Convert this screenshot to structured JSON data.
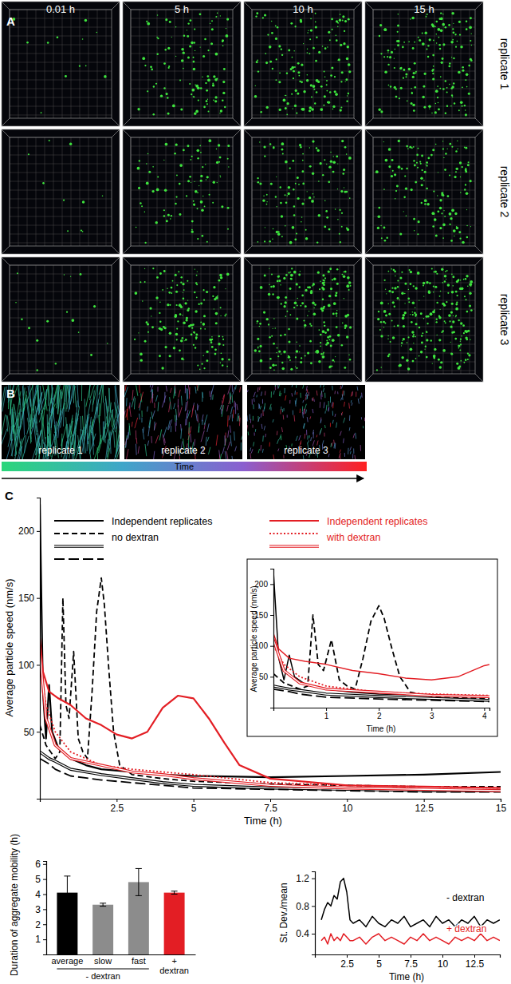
{
  "panel_a": {
    "label": "A",
    "columns": [
      "0.01 h",
      "5 h",
      "10 h",
      "15 h"
    ],
    "rows": [
      "replicate 1",
      "replicate 2",
      "replicate 3"
    ]
  },
  "panel_b": {
    "label": "B",
    "images": [
      "replicate 1",
      "replicate 2",
      "replicate 3"
    ],
    "colorbar_label": "Time"
  },
  "panel_c": {
    "label": "C"
  },
  "chart_data": [
    {
      "type": "line",
      "xlabel": "Time (h)",
      "ylabel": "Average particle speed (nm/s)",
      "xlim": [
        0,
        15
      ],
      "ylim": [
        0,
        225
      ],
      "xticks": [
        2.5,
        5,
        7.5,
        10,
        12.5,
        15
      ],
      "yticks": [
        50,
        100,
        150,
        200
      ],
      "legend_groups": [
        {
          "lines": [
            "Independent replicates",
            "no dextran"
          ],
          "color": "#000000"
        },
        {
          "lines": [
            "Independent replicates",
            "with dextran"
          ],
          "color": "#e31e24"
        }
      ],
      "series": [
        {
          "color": "#000000",
          "line_style": "solid",
          "x": [
            0,
            0.1,
            0.2,
            0.3,
            0.4,
            0.6,
            1,
            1.5,
            2,
            3,
            4,
            5,
            7.5,
            10,
            12.5,
            15
          ],
          "values": [
            220,
            80,
            45,
            85,
            50,
            38,
            30,
            25,
            22,
            20,
            18,
            17,
            16,
            17,
            18,
            20
          ]
        },
        {
          "color": "#000000",
          "line_style": "dashed",
          "x": [
            0,
            0.2,
            0.5,
            0.65,
            0.75,
            0.85,
            0.95,
            1.1,
            1.25,
            1.4,
            1.55,
            1.7,
            1.85,
            2,
            2.1,
            2.25,
            2.4,
            2.6,
            3,
            4,
            5,
            7.5,
            10,
            12.5,
            15
          ],
          "values": [
            55,
            40,
            30,
            35,
            150,
            70,
            60,
            110,
            45,
            35,
            30,
            80,
            140,
            165,
            145,
            95,
            50,
            25,
            18,
            15,
            13,
            11,
            10,
            9,
            9
          ]
        },
        {
          "color": "#000000",
          "line_style": "double",
          "x": [
            0,
            0.3,
            0.5,
            1,
            2,
            3,
            4,
            5,
            7.5,
            10,
            12.5,
            15
          ],
          "values": [
            35,
            30,
            28,
            22,
            18,
            15,
            12,
            10,
            8,
            7,
            6,
            6
          ]
        },
        {
          "color": "#000000",
          "line_style": "longdash",
          "x": [
            0,
            0.3,
            0.5,
            1,
            2,
            3,
            4,
            5,
            7.5,
            10,
            12.5,
            15
          ],
          "values": [
            30,
            26,
            22,
            17,
            14,
            12,
            10,
            8,
            7,
            6,
            5,
            5
          ]
        },
        {
          "color": "#e31e24",
          "line_style": "solid",
          "x": [
            0,
            0.1,
            0.3,
            0.6,
            1,
            1.5,
            2,
            2.5,
            3,
            3.5,
            4,
            4.5,
            5,
            5.5,
            6,
            6.5,
            7.5,
            10,
            12.5,
            15
          ],
          "values": [
            120,
            95,
            80,
            75,
            70,
            60,
            55,
            48,
            45,
            50,
            68,
            77,
            75,
            60,
            42,
            25,
            15,
            10,
            9,
            8
          ]
        },
        {
          "color": "#e31e24",
          "line_style": "dotted",
          "x": [
            0,
            0.2,
            0.5,
            1,
            2,
            3,
            4,
            5,
            7.5,
            10,
            12.5,
            15
          ],
          "values": [
            100,
            70,
            50,
            35,
            25,
            22,
            20,
            18,
            12,
            10,
            9,
            8
          ]
        },
        {
          "color": "#e31e24",
          "line_style": "double",
          "x": [
            0,
            0.2,
            0.5,
            1,
            2,
            3,
            4,
            5,
            7.5,
            10,
            12.5,
            15
          ],
          "values": [
            110,
            60,
            40,
            30,
            25,
            20,
            18,
            15,
            10,
            8,
            7,
            6
          ]
        }
      ]
    },
    {
      "type": "line",
      "xlabel": "Time (h)",
      "ylabel": "Average particle speed (nm/s)",
      "xlim": [
        0,
        4.1
      ],
      "ylim": [
        0,
        225
      ],
      "xticks": [
        1,
        2,
        3,
        4
      ],
      "yticks": [
        50,
        100,
        150,
        200
      ]
    },
    {
      "type": "bar",
      "ylabel": "Duration of aggregate mobility (h)",
      "categories": [
        "average",
        "slow",
        "fast",
        "+ dextran"
      ],
      "values": [
        4.1,
        3.3,
        4.8,
        4.1
      ],
      "errors": [
        1.1,
        0.1,
        0.9,
        0.1
      ],
      "colors": [
        "#000000",
        "#8c8c8c",
        "#8c8c8c",
        "#e31e24"
      ],
      "group_label": "- dextran",
      "ylim": [
        0,
        6.2
      ],
      "yticks": [
        1,
        2,
        3,
        4,
        5,
        6
      ]
    },
    {
      "type": "line",
      "xlabel": "Time (h)",
      "ylabel": "St. Dev./mean",
      "xlim": [
        0,
        14.5
      ],
      "ylim": [
        0.1,
        1.3
      ],
      "xticks": [
        2.5,
        5,
        7.5,
        10,
        12.5
      ],
      "yticks": [
        0.4,
        0.8,
        1.2
      ],
      "x": [
        0.5,
        0.75,
        1,
        1.25,
        1.5,
        1.75,
        2,
        2.25,
        2.5,
        2.75,
        3,
        3.5,
        4,
        4.5,
        5,
        5.5,
        6,
        6.5,
        7,
        7.5,
        8,
        8.5,
        9,
        9.5,
        10,
        10.5,
        11,
        11.5,
        12,
        12.5,
        13,
        13.5,
        14,
        14.5
      ],
      "series": [
        {
          "name": "- dextran",
          "color": "#000000",
          "line_style": "solid",
          "values": [
            0.6,
            0.75,
            0.85,
            0.8,
            0.95,
            0.9,
            1.15,
            1.2,
            1.0,
            0.6,
            0.55,
            0.6,
            0.5,
            0.65,
            0.55,
            0.5,
            0.6,
            0.55,
            0.65,
            0.5,
            0.55,
            0.6,
            0.5,
            0.65,
            0.55,
            0.6,
            0.5,
            0.6,
            0.55,
            0.65,
            0.5,
            0.6,
            0.55,
            0.6
          ]
        },
        {
          "name": "+ dextran",
          "color": "#e31e24",
          "line_style": "solid",
          "values": [
            0.3,
            0.35,
            0.25,
            0.4,
            0.3,
            0.35,
            0.3,
            0.4,
            0.35,
            0.3,
            0.3,
            0.35,
            0.25,
            0.35,
            0.4,
            0.3,
            0.35,
            0.3,
            0.25,
            0.35,
            0.3,
            0.4,
            0.3,
            0.35,
            0.3,
            0.25,
            0.35,
            0.3,
            0.35,
            0.3,
            0.4,
            0.3,
            0.35,
            0.3
          ]
        }
      ]
    }
  ]
}
